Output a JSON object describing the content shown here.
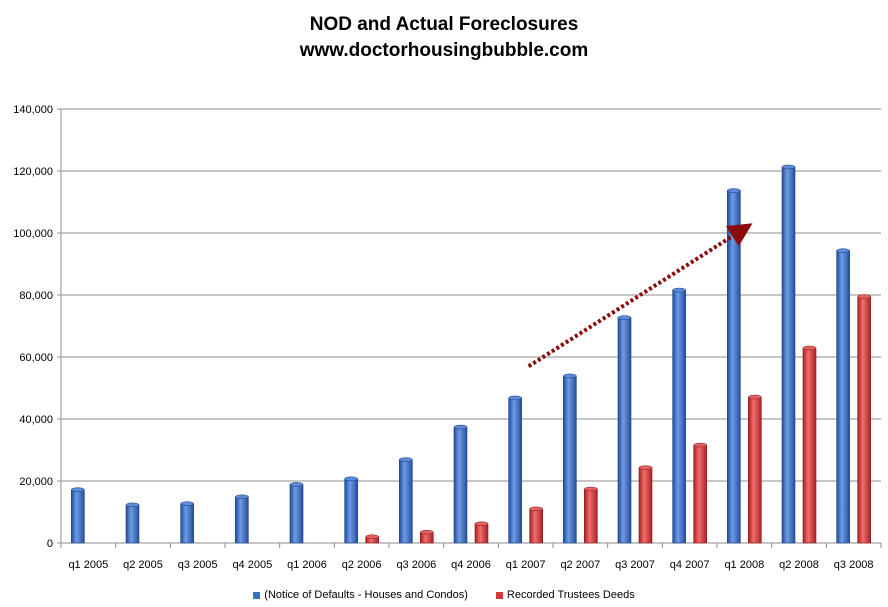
{
  "chart_data": {
    "type": "bar",
    "title": "NOD and Actual Foreclosures",
    "subtitle": "www.doctorhousingbubble.com",
    "xlabel": "",
    "ylabel": "",
    "ylim": [
      0,
      140000
    ],
    "yticks": [
      "0",
      "20,000",
      "40,000",
      "60,000",
      "80,000",
      "100,000",
      "120,000",
      "140,000"
    ],
    "grid": true,
    "legend_position": "bottom",
    "categories": [
      "q1 2005",
      "q2 2005",
      "q3 2005",
      "q4 2005",
      "q1 2006",
      "q2 2006",
      "q3 2006",
      "q4 2006",
      "q1 2007",
      "q2 2007",
      "q3 2007",
      "q4 2007",
      "q1 2008",
      "q2 2008",
      "q3 2008"
    ],
    "series": [
      {
        "name": "(Notice of Defaults - Houses and Condos)",
        "color": "#3b6fc6",
        "values": [
          17200,
          12300,
          12700,
          14900,
          18900,
          20700,
          26900,
          37400,
          46800,
          53900,
          72700,
          81600,
          113700,
          121300,
          94300
        ]
      },
      {
        "name": "Recorded Trustees Deeds",
        "color": "#d9393a",
        "values": [
          0,
          0,
          0,
          0,
          0,
          2000,
          3500,
          6200,
          11000,
          17400,
          24300,
          31600,
          47100,
          62900,
          79500
        ]
      }
    ],
    "annotation": {
      "type": "trend-arrow",
      "color": "#8b0a0a",
      "from": {
        "category": "q1 2007",
        "value": 57000
      },
      "to": {
        "category": "q1 2008",
        "value": 100000
      }
    }
  }
}
